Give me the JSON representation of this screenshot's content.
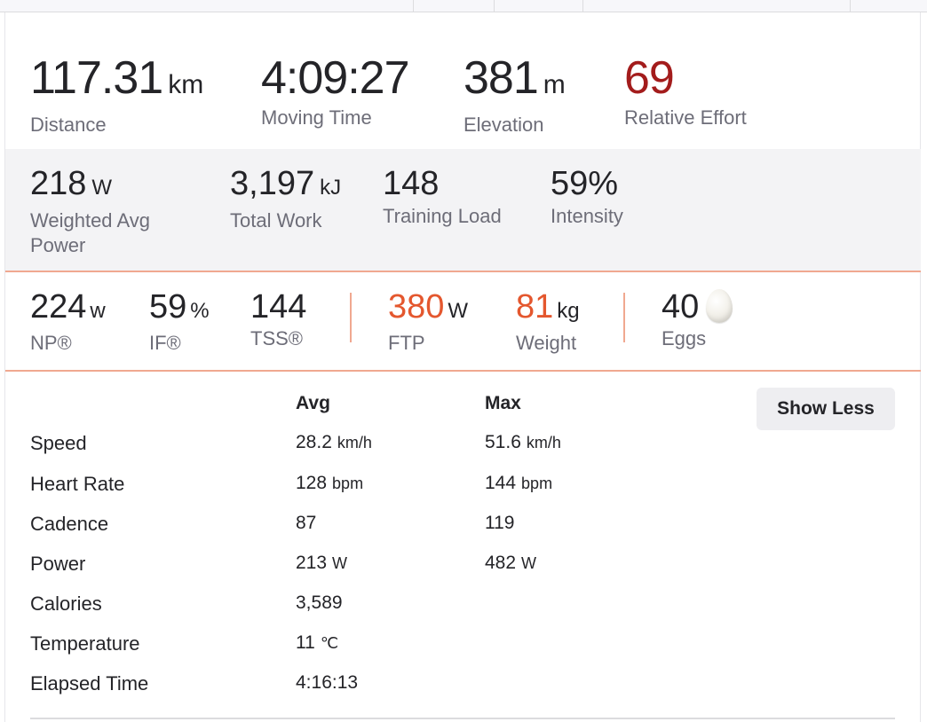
{
  "primary": [
    {
      "value": "117.31",
      "unit": "km",
      "label": "Distance"
    },
    {
      "value": "4:09:27",
      "unit": "",
      "label": "Moving Time"
    },
    {
      "value": "381",
      "unit": "m",
      "label": "Elevation"
    },
    {
      "value": "69",
      "unit": "",
      "label": "Relative Effort"
    }
  ],
  "secondary": [
    {
      "value": "218",
      "unit": "W",
      "label": "Weighted Avg Power"
    },
    {
      "value": "3,197",
      "unit": "kJ",
      "label": "Total Work"
    },
    {
      "value": "148",
      "unit": "",
      "label": "Training Load"
    },
    {
      "value": "59%",
      "unit": "",
      "label": "Intensity"
    }
  ],
  "tertiary": {
    "np": {
      "value": "224",
      "unit": "w",
      "label": "NP®"
    },
    "if": {
      "value": "59",
      "unit": "%",
      "label": "IF®"
    },
    "tss": {
      "value": "144",
      "unit": "",
      "label": "TSS®"
    },
    "ftp": {
      "value": "380",
      "unit": "W",
      "label": "FTP"
    },
    "weight": {
      "value": "81",
      "unit": "kg",
      "label": "Weight"
    },
    "eggs": {
      "value": "40",
      "label": "Eggs",
      "icon": "egg-icon"
    }
  },
  "details": {
    "headers": {
      "avg": "Avg",
      "max": "Max"
    },
    "show_less_label": "Show Less",
    "rows": [
      {
        "label": "Speed",
        "avg": "28.2",
        "avg_unit": "km/h",
        "max": "51.6",
        "max_unit": "km/h"
      },
      {
        "label": "Heart Rate",
        "avg": "128",
        "avg_unit": "bpm",
        "max": "144",
        "max_unit": "bpm"
      },
      {
        "label": "Cadence",
        "avg": "87",
        "avg_unit": "",
        "max": "119",
        "max_unit": ""
      },
      {
        "label": "Power",
        "avg": "213",
        "avg_unit": "W",
        "max": "482",
        "max_unit": "W"
      },
      {
        "label": "Calories",
        "avg": "3,589",
        "avg_unit": "",
        "max": "",
        "max_unit": ""
      },
      {
        "label": "Temperature",
        "avg": "11",
        "avg_unit": "℃",
        "max": "",
        "max_unit": ""
      },
      {
        "label": "Elapsed Time",
        "avg": "4:16:13",
        "avg_unit": "",
        "max": "",
        "max_unit": ""
      }
    ]
  },
  "colors": {
    "relative_effort": "#a31c1c",
    "highlight": "#e4572e",
    "divider": "#f0a890",
    "label_gray": "#6d6d78"
  }
}
